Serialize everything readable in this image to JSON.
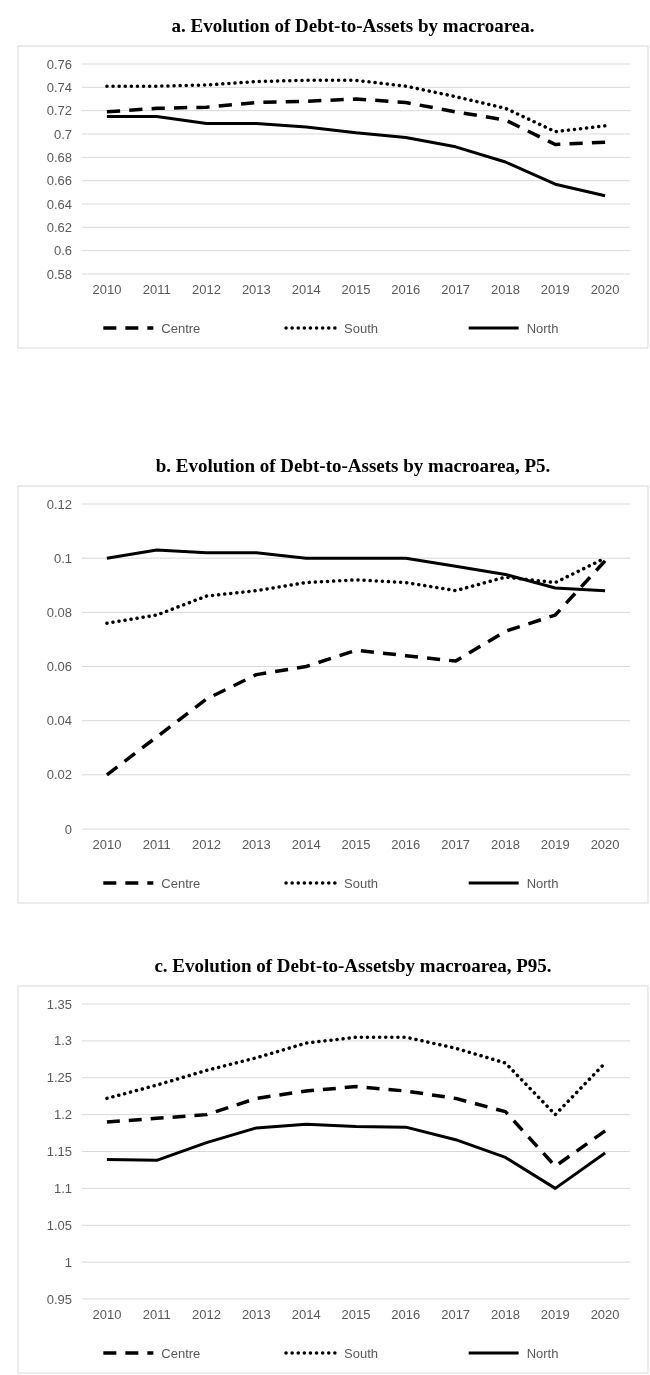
{
  "chart_data": [
    {
      "type": "line",
      "title": "a. Evolution of Debt-to-Assets by macroarea.",
      "categories": [
        "2010",
        "2011",
        "2012",
        "2013",
        "2014",
        "2015",
        "2016",
        "2017",
        "2018",
        "2019",
        "2020"
      ],
      "ylim": [
        0.58,
        0.76
      ],
      "yticks": [
        0.58,
        0.6,
        0.62,
        0.64,
        0.66,
        0.68,
        0.7,
        0.72,
        0.74,
        0.76
      ],
      "grid": "y",
      "legend": "bottom",
      "marker": "none",
      "series": [
        {
          "name": "Centre",
          "color": "#000000",
          "line_style": "dashed",
          "values": [
            0.719,
            0.722,
            0.723,
            0.727,
            0.728,
            0.73,
            0.727,
            0.719,
            0.712,
            0.691,
            0.693
          ]
        },
        {
          "name": "South",
          "color": "#000000",
          "line_style": "dotted",
          "values": [
            0.741,
            0.741,
            0.742,
            0.745,
            0.746,
            0.746,
            0.741,
            0.732,
            0.722,
            0.702,
            0.707
          ]
        },
        {
          "name": "North",
          "color": "#000000",
          "line_style": "solid",
          "values": [
            0.715,
            0.715,
            0.709,
            0.709,
            0.706,
            0.701,
            0.697,
            0.689,
            0.676,
            0.657,
            0.647
          ]
        }
      ]
    },
    {
      "type": "line",
      "title": "b. Evolution of Debt-to-Assets by macroarea, P5.",
      "categories": [
        "2010",
        "2011",
        "2012",
        "2013",
        "2014",
        "2015",
        "2016",
        "2017",
        "2018",
        "2019",
        "2020"
      ],
      "ylim": [
        0,
        0.12
      ],
      "yticks": [
        0,
        0.02,
        0.04,
        0.06,
        0.08,
        0.1,
        0.12
      ],
      "grid": "y",
      "legend": "bottom",
      "marker": "none",
      "series": [
        {
          "name": "Centre",
          "color": "#000000",
          "line_style": "dashed",
          "values": [
            0.02,
            0.034,
            0.048,
            0.057,
            0.06,
            0.066,
            0.064,
            0.062,
            0.073,
            0.079,
            0.099
          ]
        },
        {
          "name": "South",
          "color": "#000000",
          "line_style": "dotted",
          "values": [
            0.076,
            0.079,
            0.086,
            0.088,
            0.091,
            0.092,
            0.091,
            0.088,
            0.093,
            0.091,
            0.1
          ]
        },
        {
          "name": "North",
          "color": "#000000",
          "line_style": "solid",
          "values": [
            0.1,
            0.103,
            0.102,
            0.102,
            0.1,
            0.1,
            0.1,
            0.097,
            0.094,
            0.089,
            0.088
          ]
        }
      ]
    },
    {
      "type": "line",
      "title": "c. Evolution of Debt-to-Assetsby macroarea, P95.",
      "categories": [
        "2010",
        "2011",
        "2012",
        "2013",
        "2014",
        "2015",
        "2016",
        "2017",
        "2018",
        "2019",
        "2020"
      ],
      "ylim": [
        0.95,
        1.35
      ],
      "yticks": [
        0.95,
        1,
        1.05,
        1.1,
        1.15,
        1.2,
        1.25,
        1.3,
        1.35
      ],
      "grid": "y",
      "legend": "bottom",
      "marker": "none",
      "series": [
        {
          "name": "Centre",
          "color": "#000000",
          "line_style": "dashed",
          "values": [
            1.19,
            1.195,
            1.2,
            1.222,
            1.232,
            1.238,
            1.232,
            1.222,
            1.204,
            1.13,
            1.178
          ]
        },
        {
          "name": "South",
          "color": "#000000",
          "line_style": "dotted",
          "values": [
            1.222,
            1.24,
            1.26,
            1.277,
            1.297,
            1.305,
            1.305,
            1.29,
            1.27,
            1.2,
            1.27
          ]
        },
        {
          "name": "North",
          "color": "#000000",
          "line_style": "solid",
          "values": [
            1.139,
            1.138,
            1.162,
            1.182,
            1.187,
            1.184,
            1.183,
            1.166,
            1.142,
            1.1,
            1.148
          ]
        }
      ]
    }
  ]
}
